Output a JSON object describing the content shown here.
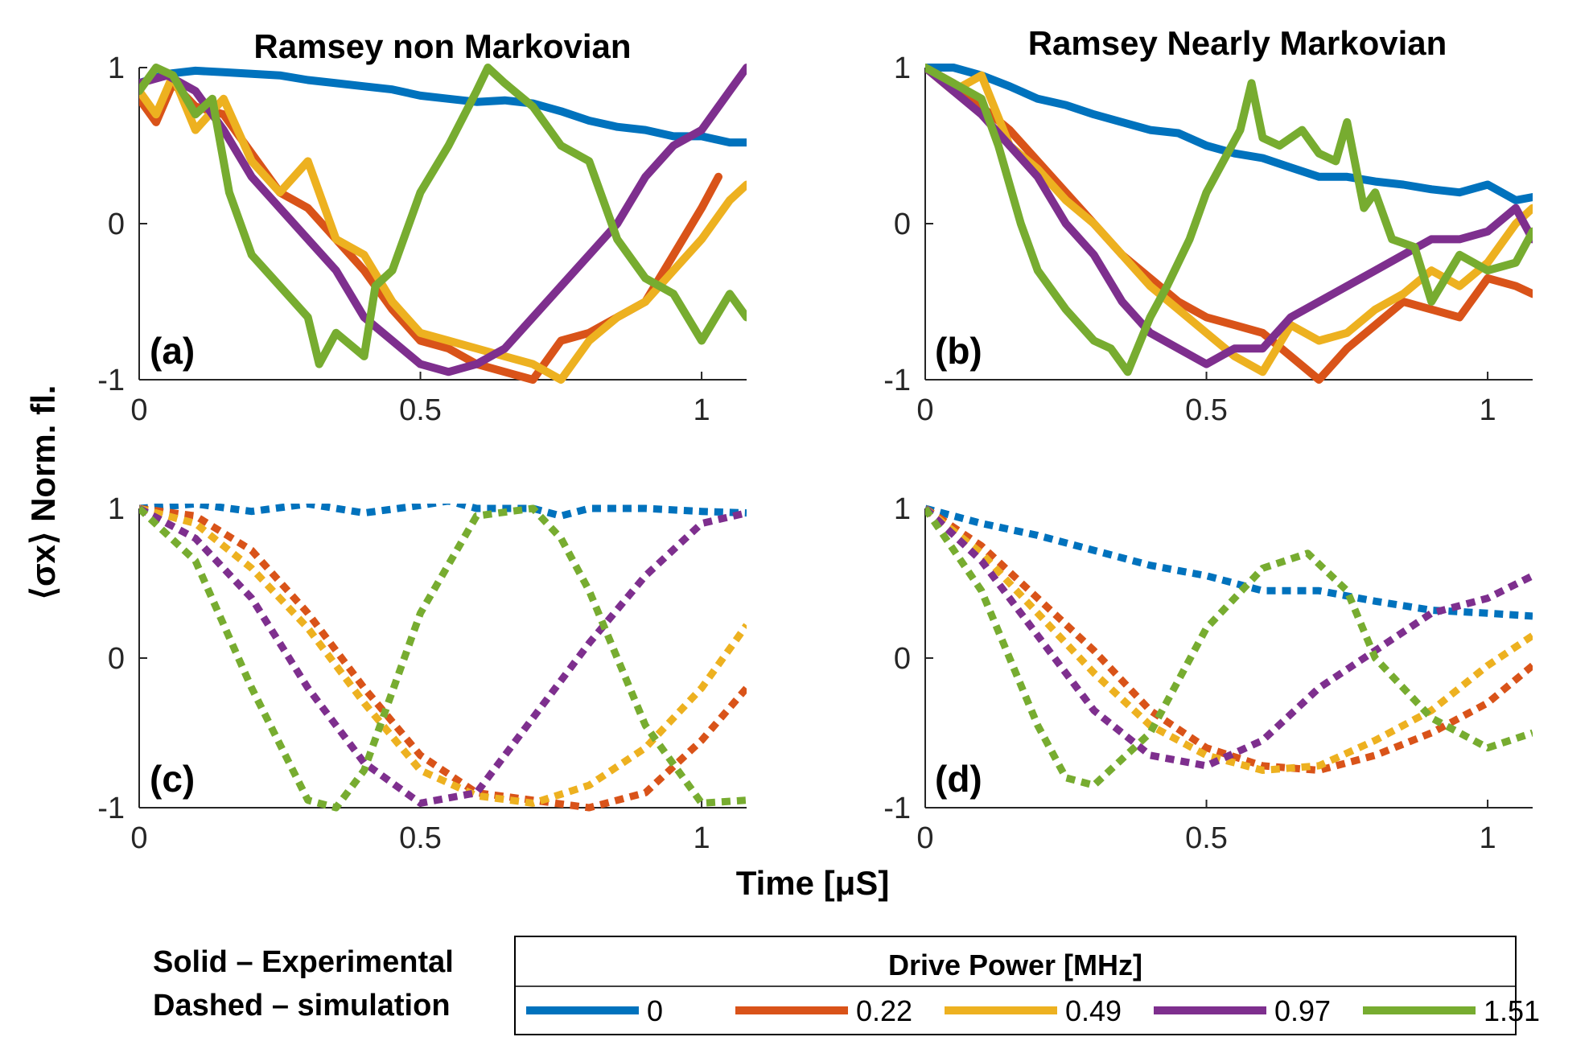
{
  "figure": {
    "ylabel": "⟨σx⟩ Norm. fl.",
    "xlabel": "Time [μS]",
    "notes": {
      "solid": "Solid – Experimental",
      "dashed": "Dashed – simulation"
    },
    "legend": {
      "title": "Drive Power [MHz]",
      "entries": [
        {
          "label": "0",
          "color": "#0072BD"
        },
        {
          "label": "0.22",
          "color": "#D95319"
        },
        {
          "label": "0.49",
          "color": "#EDB120"
        },
        {
          "label": "0.97",
          "color": "#7E2F8E"
        },
        {
          "label": "1.51",
          "color": "#77AC30"
        }
      ]
    }
  },
  "chart_data": [
    {
      "panel": "(a)",
      "type": "line",
      "style": "solid",
      "title": "Ramsey non Markovian",
      "xlim": [
        0,
        1.08
      ],
      "ylim": [
        -1,
        1
      ],
      "xticks": [
        "0",
        "0.5",
        "1"
      ],
      "yticks": [
        "-1",
        "0",
        "1"
      ],
      "series": [
        {
          "name": "0",
          "color": "#0072BD",
          "x": [
            0,
            0.05,
            0.1,
            0.15,
            0.2,
            0.25,
            0.3,
            0.35,
            0.4,
            0.45,
            0.5,
            0.55,
            0.6,
            0.65,
            0.7,
            0.75,
            0.8,
            0.85,
            0.9,
            0.95,
            1.0,
            1.05,
            1.08
          ],
          "y": [
            0.9,
            0.96,
            0.98,
            0.97,
            0.96,
            0.95,
            0.92,
            0.9,
            0.88,
            0.86,
            0.82,
            0.8,
            0.78,
            0.79,
            0.77,
            0.72,
            0.66,
            0.62,
            0.6,
            0.56,
            0.56,
            0.52,
            0.52
          ]
        },
        {
          "name": "0.22",
          "color": "#D95319",
          "x": [
            0,
            0.03,
            0.06,
            0.1,
            0.15,
            0.2,
            0.25,
            0.3,
            0.35,
            0.4,
            0.45,
            0.5,
            0.55,
            0.6,
            0.65,
            0.7,
            0.75,
            0.8,
            0.85,
            0.9,
            0.95,
            1.0,
            1.03
          ],
          "y": [
            0.8,
            0.65,
            0.9,
            0.75,
            0.7,
            0.45,
            0.2,
            0.1,
            -0.1,
            -0.3,
            -0.55,
            -0.75,
            -0.8,
            -0.9,
            -0.95,
            -1,
            -0.75,
            -0.7,
            -0.6,
            -0.5,
            -0.2,
            0.1,
            0.3
          ]
        },
        {
          "name": "0.49",
          "color": "#EDB120",
          "x": [
            0,
            0.03,
            0.06,
            0.1,
            0.15,
            0.2,
            0.25,
            0.3,
            0.35,
            0.4,
            0.45,
            0.5,
            0.55,
            0.6,
            0.65,
            0.7,
            0.75,
            0.8,
            0.85,
            0.9,
            0.95,
            1.0,
            1.05,
            1.08
          ],
          "y": [
            0.85,
            0.7,
            0.95,
            0.6,
            0.8,
            0.4,
            0.2,
            0.4,
            -0.1,
            -0.2,
            -0.5,
            -0.7,
            -0.75,
            -0.8,
            -0.85,
            -0.9,
            -1,
            -0.75,
            -0.6,
            -0.5,
            -0.3,
            -0.1,
            0.15,
            0.25
          ]
        },
        {
          "name": "0.97",
          "color": "#7E2F8E",
          "x": [
            0,
            0.05,
            0.1,
            0.15,
            0.2,
            0.25,
            0.3,
            0.35,
            0.4,
            0.45,
            0.5,
            0.55,
            0.6,
            0.65,
            0.7,
            0.75,
            0.8,
            0.85,
            0.9,
            0.95,
            1.0,
            1.05,
            1.08
          ],
          "y": [
            0.9,
            0.95,
            0.85,
            0.6,
            0.3,
            0.1,
            -0.1,
            -0.3,
            -0.6,
            -0.75,
            -0.9,
            -0.95,
            -0.9,
            -0.8,
            -0.6,
            -0.4,
            -0.2,
            0.0,
            0.3,
            0.5,
            0.6,
            0.85,
            1.0
          ]
        },
        {
          "name": "1.51",
          "color": "#77AC30",
          "x": [
            0,
            0.03,
            0.06,
            0.1,
            0.13,
            0.16,
            0.2,
            0.25,
            0.3,
            0.32,
            0.35,
            0.4,
            0.42,
            0.45,
            0.5,
            0.55,
            0.6,
            0.62,
            0.65,
            0.7,
            0.75,
            0.8,
            0.85,
            0.9,
            0.95,
            1.0,
            1.05,
            1.08
          ],
          "y": [
            0.85,
            1.0,
            0.95,
            0.7,
            0.8,
            0.2,
            -0.2,
            -0.4,
            -0.6,
            -0.9,
            -0.7,
            -0.85,
            -0.4,
            -0.3,
            0.2,
            0.5,
            0.85,
            1.0,
            0.9,
            0.75,
            0.5,
            0.4,
            -0.1,
            -0.35,
            -0.45,
            -0.75,
            -0.45,
            -0.6
          ]
        }
      ]
    },
    {
      "panel": "(b)",
      "type": "line",
      "style": "solid",
      "title": "Ramsey Nearly Markovian",
      "xlim": [
        0,
        1.08
      ],
      "ylim": [
        -1,
        1
      ],
      "xticks": [
        "0",
        "0.5",
        "1"
      ],
      "yticks": [
        "-1",
        "0",
        "1"
      ],
      "series": [
        {
          "name": "0",
          "color": "#0072BD",
          "x": [
            0,
            0.05,
            0.1,
            0.15,
            0.2,
            0.25,
            0.3,
            0.35,
            0.4,
            0.45,
            0.5,
            0.55,
            0.6,
            0.65,
            0.7,
            0.75,
            0.8,
            0.85,
            0.9,
            0.95,
            1.0,
            1.05,
            1.08
          ],
          "y": [
            1.0,
            1.0,
            0.95,
            0.88,
            0.8,
            0.76,
            0.7,
            0.65,
            0.6,
            0.58,
            0.5,
            0.45,
            0.42,
            0.36,
            0.3,
            0.3,
            0.27,
            0.25,
            0.22,
            0.2,
            0.25,
            0.15,
            0.17
          ]
        },
        {
          "name": "0.22",
          "color": "#D95319",
          "x": [
            0,
            0.05,
            0.1,
            0.15,
            0.2,
            0.25,
            0.3,
            0.35,
            0.4,
            0.45,
            0.5,
            0.55,
            0.6,
            0.65,
            0.7,
            0.75,
            0.8,
            0.85,
            0.9,
            0.95,
            1.0,
            1.05,
            1.08
          ],
          "y": [
            1.0,
            0.9,
            0.75,
            0.6,
            0.4,
            0.2,
            0.0,
            -0.2,
            -0.35,
            -0.5,
            -0.6,
            -0.65,
            -0.7,
            -0.85,
            -1.0,
            -0.8,
            -0.65,
            -0.5,
            -0.55,
            -0.6,
            -0.35,
            -0.4,
            -0.45
          ]
        },
        {
          "name": "0.49",
          "color": "#EDB120",
          "x": [
            0,
            0.05,
            0.1,
            0.15,
            0.2,
            0.25,
            0.3,
            0.35,
            0.4,
            0.45,
            0.5,
            0.55,
            0.6,
            0.65,
            0.7,
            0.75,
            0.8,
            0.85,
            0.9,
            0.95,
            1.0,
            1.05,
            1.08
          ],
          "y": [
            1.0,
            0.85,
            0.95,
            0.5,
            0.35,
            0.15,
            0.0,
            -0.2,
            -0.4,
            -0.55,
            -0.7,
            -0.85,
            -0.95,
            -0.65,
            -0.75,
            -0.7,
            -0.55,
            -0.45,
            -0.3,
            -0.4,
            -0.25,
            0.0,
            0.1
          ]
        },
        {
          "name": "0.97",
          "color": "#7E2F8E",
          "x": [
            0,
            0.05,
            0.1,
            0.15,
            0.2,
            0.25,
            0.3,
            0.35,
            0.4,
            0.45,
            0.5,
            0.55,
            0.6,
            0.65,
            0.7,
            0.75,
            0.8,
            0.85,
            0.9,
            0.95,
            1.0,
            1.05,
            1.08
          ],
          "y": [
            1.0,
            0.85,
            0.7,
            0.5,
            0.3,
            0.0,
            -0.2,
            -0.5,
            -0.7,
            -0.8,
            -0.9,
            -0.8,
            -0.8,
            -0.6,
            -0.5,
            -0.4,
            -0.3,
            -0.2,
            -0.1,
            -0.1,
            -0.05,
            0.1,
            -0.1
          ]
        },
        {
          "name": "1.51",
          "color": "#77AC30",
          "x": [
            0,
            0.05,
            0.1,
            0.13,
            0.17,
            0.2,
            0.25,
            0.3,
            0.33,
            0.36,
            0.4,
            0.43,
            0.47,
            0.5,
            0.53,
            0.56,
            0.58,
            0.6,
            0.63,
            0.67,
            0.7,
            0.73,
            0.75,
            0.78,
            0.8,
            0.83,
            0.87,
            0.9,
            0.95,
            1.0,
            1.05,
            1.08
          ],
          "y": [
            1.0,
            0.9,
            0.8,
            0.5,
            0.0,
            -0.3,
            -0.55,
            -0.75,
            -0.8,
            -0.95,
            -0.6,
            -0.4,
            -0.1,
            0.2,
            0.4,
            0.6,
            0.9,
            0.55,
            0.5,
            0.6,
            0.45,
            0.4,
            0.65,
            0.1,
            0.2,
            -0.1,
            -0.15,
            -0.5,
            -0.2,
            -0.3,
            -0.25,
            -0.05
          ]
        }
      ]
    },
    {
      "panel": "(c)",
      "type": "line",
      "style": "dashed",
      "xlim": [
        0,
        1.08
      ],
      "ylim": [
        -1,
        1
      ],
      "xticks": [
        "0",
        "0.5",
        "1"
      ],
      "yticks": [
        "-1",
        "0",
        "1"
      ],
      "series": [
        {
          "name": "0",
          "color": "#0072BD",
          "x": [
            0,
            0.1,
            0.2,
            0.3,
            0.4,
            0.5,
            0.55,
            0.6,
            0.7,
            0.75,
            0.8,
            0.9,
            1.0,
            1.08
          ],
          "y": [
            1.0,
            1.03,
            0.98,
            1.03,
            0.97,
            1.02,
            1.05,
            1.0,
            1.0,
            0.95,
            1.0,
            1.0,
            0.98,
            0.97
          ]
        },
        {
          "name": "0.22",
          "color": "#D95319",
          "x": [
            0,
            0.1,
            0.2,
            0.3,
            0.4,
            0.5,
            0.6,
            0.7,
            0.8,
            0.9,
            1.0,
            1.08
          ],
          "y": [
            1.0,
            0.95,
            0.72,
            0.3,
            -0.2,
            -0.65,
            -0.9,
            -0.95,
            -1.0,
            -0.9,
            -0.55,
            -0.2
          ]
        },
        {
          "name": "0.49",
          "color": "#EDB120",
          "x": [
            0,
            0.1,
            0.2,
            0.3,
            0.4,
            0.5,
            0.6,
            0.7,
            0.8,
            0.9,
            1.0,
            1.08
          ],
          "y": [
            1.0,
            0.9,
            0.6,
            0.2,
            -0.3,
            -0.75,
            -0.92,
            -0.97,
            -0.85,
            -0.6,
            -0.2,
            0.22
          ]
        },
        {
          "name": "0.97",
          "color": "#7E2F8E",
          "x": [
            0,
            0.1,
            0.2,
            0.3,
            0.4,
            0.5,
            0.6,
            0.7,
            0.8,
            0.9,
            1.0,
            1.08
          ],
          "y": [
            1.0,
            0.8,
            0.4,
            -0.2,
            -0.7,
            -0.97,
            -0.9,
            -0.4,
            0.1,
            0.55,
            0.9,
            0.97
          ]
        },
        {
          "name": "1.51",
          "color": "#77AC30",
          "x": [
            0,
            0.1,
            0.2,
            0.3,
            0.35,
            0.4,
            0.5,
            0.6,
            0.7,
            0.75,
            0.8,
            0.9,
            1.0,
            1.08
          ],
          "y": [
            1.0,
            0.65,
            -0.2,
            -0.95,
            -1.0,
            -0.75,
            0.3,
            0.95,
            1.0,
            0.8,
            0.45,
            -0.45,
            -0.97,
            -0.95
          ]
        }
      ]
    },
    {
      "panel": "(d)",
      "type": "line",
      "style": "dashed",
      "xlim": [
        0,
        1.08
      ],
      "ylim": [
        -1,
        1
      ],
      "xticks": [
        "0",
        "0.5",
        "1"
      ],
      "yticks": [
        "-1",
        "0",
        "1"
      ],
      "series": [
        {
          "name": "0",
          "color": "#0072BD",
          "x": [
            0,
            0.1,
            0.2,
            0.3,
            0.4,
            0.5,
            0.55,
            0.6,
            0.7,
            0.8,
            0.9,
            1.0,
            1.08
          ],
          "y": [
            1.0,
            0.9,
            0.82,
            0.72,
            0.62,
            0.55,
            0.5,
            0.45,
            0.45,
            0.38,
            0.32,
            0.3,
            0.28
          ]
        },
        {
          "name": "0.22",
          "color": "#D95319",
          "x": [
            0,
            0.1,
            0.2,
            0.3,
            0.4,
            0.5,
            0.6,
            0.7,
            0.8,
            0.9,
            1.0,
            1.08
          ],
          "y": [
            1.0,
            0.75,
            0.4,
            0.05,
            -0.35,
            -0.6,
            -0.72,
            -0.75,
            -0.65,
            -0.5,
            -0.3,
            -0.05
          ]
        },
        {
          "name": "0.49",
          "color": "#EDB120",
          "x": [
            0,
            0.1,
            0.2,
            0.3,
            0.4,
            0.5,
            0.6,
            0.7,
            0.8,
            0.9,
            1.0,
            1.08
          ],
          "y": [
            1.0,
            0.7,
            0.3,
            -0.1,
            -0.45,
            -0.65,
            -0.75,
            -0.72,
            -0.55,
            -0.35,
            -0.05,
            0.15
          ]
        },
        {
          "name": "0.97",
          "color": "#7E2F8E",
          "x": [
            0,
            0.1,
            0.2,
            0.3,
            0.4,
            0.5,
            0.6,
            0.7,
            0.8,
            0.9,
            1.0,
            1.08
          ],
          "y": [
            1.0,
            0.65,
            0.15,
            -0.35,
            -0.65,
            -0.72,
            -0.55,
            -0.2,
            0.05,
            0.3,
            0.4,
            0.55
          ]
        },
        {
          "name": "1.51",
          "color": "#77AC30",
          "x": [
            0,
            0.1,
            0.2,
            0.25,
            0.3,
            0.4,
            0.5,
            0.6,
            0.68,
            0.75,
            0.8,
            0.9,
            1.0,
            1.08
          ],
          "y": [
            1.0,
            0.45,
            -0.45,
            -0.8,
            -0.85,
            -0.5,
            0.2,
            0.6,
            0.7,
            0.45,
            0.0,
            -0.4,
            -0.6,
            -0.5
          ]
        }
      ]
    }
  ]
}
